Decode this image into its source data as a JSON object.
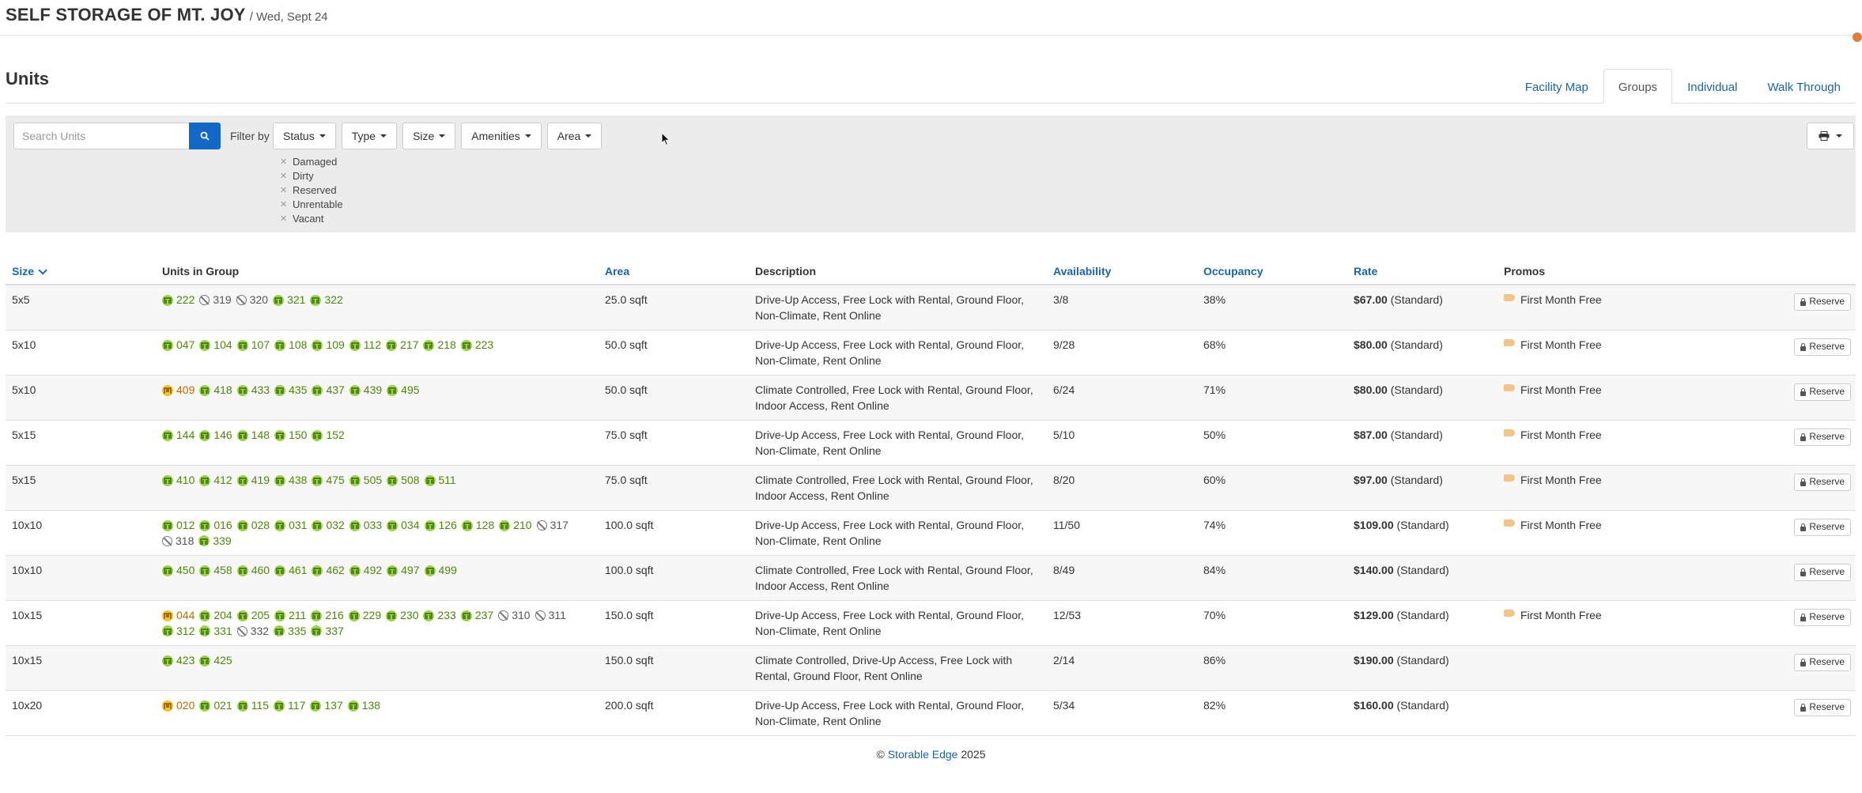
{
  "header": {
    "facility_name": "SELF STORAGE OF MT. JOY",
    "date": "/ Wed, Sept 24"
  },
  "units_section": {
    "title": "Units",
    "tabs": [
      {
        "label": "Facility Map",
        "active": false
      },
      {
        "label": "Groups",
        "active": true
      },
      {
        "label": "Individual",
        "active": false
      },
      {
        "label": "Walk Through",
        "active": false
      }
    ]
  },
  "filters": {
    "search_placeholder": "Search Units",
    "filter_by_label": "Filter by",
    "buttons": [
      "Status",
      "Type",
      "Size",
      "Amenities",
      "Area"
    ],
    "active_chips": [
      "Damaged",
      "Dirty",
      "Reserved",
      "Unrentable",
      "Vacant"
    ]
  },
  "table": {
    "columns": [
      "Size",
      "Units in Group",
      "Area",
      "Description",
      "Availability",
      "Occupancy",
      "Rate",
      "Promos",
      ""
    ],
    "reserve_label": "Reserve",
    "rows": [
      {
        "size": "5x5",
        "units": [
          [
            "222",
            "ok"
          ],
          [
            "319",
            "dis"
          ],
          [
            "320",
            "dis"
          ],
          [
            "321",
            "ok"
          ],
          [
            "322",
            "ok"
          ]
        ],
        "area": "25.0 sqft",
        "desc": "Drive-Up Access, Free Lock with Rental, Ground Floor, Non-Climate, Rent Online",
        "avail": "3/8",
        "occ": "38%",
        "rate": "$67.00",
        "rate_note": "(Standard)",
        "promo": "First Month Free"
      },
      {
        "size": "5x10",
        "units": [
          [
            "047",
            "ok"
          ],
          [
            "104",
            "ok"
          ],
          [
            "107",
            "ok"
          ],
          [
            "108",
            "ok"
          ],
          [
            "109",
            "ok"
          ],
          [
            "112",
            "ok"
          ],
          [
            "217",
            "ok"
          ],
          [
            "218",
            "ok"
          ],
          [
            "223",
            "ok"
          ]
        ],
        "area": "50.0 sqft",
        "desc": "Drive-Up Access, Free Lock with Rental, Ground Floor, Non-Climate, Rent Online",
        "avail": "9/28",
        "occ": "68%",
        "rate": "$80.00",
        "rate_note": "(Standard)",
        "promo": "First Month Free"
      },
      {
        "size": "5x10",
        "units": [
          [
            "409",
            "res"
          ],
          [
            "418",
            "ok"
          ],
          [
            "433",
            "ok"
          ],
          [
            "435",
            "ok"
          ],
          [
            "437",
            "ok"
          ],
          [
            "439",
            "ok"
          ],
          [
            "495",
            "ok"
          ]
        ],
        "area": "50.0 sqft",
        "desc": "Climate Controlled, Free Lock with Rental, Ground Floor, Indoor Access, Rent Online",
        "avail": "6/24",
        "occ": "71%",
        "rate": "$80.00",
        "rate_note": "(Standard)",
        "promo": "First Month Free"
      },
      {
        "size": "5x15",
        "units": [
          [
            "144",
            "ok"
          ],
          [
            "146",
            "ok"
          ],
          [
            "148",
            "ok"
          ],
          [
            "150",
            "ok"
          ],
          [
            "152",
            "ok"
          ]
        ],
        "area": "75.0 sqft",
        "desc": "Drive-Up Access, Free Lock with Rental, Ground Floor, Non-Climate, Rent Online",
        "avail": "5/10",
        "occ": "50%",
        "rate": "$87.00",
        "rate_note": "(Standard)",
        "promo": "First Month Free"
      },
      {
        "size": "5x15",
        "units": [
          [
            "410",
            "ok"
          ],
          [
            "412",
            "ok"
          ],
          [
            "419",
            "ok"
          ],
          [
            "438",
            "ok"
          ],
          [
            "475",
            "ok"
          ],
          [
            "505",
            "ok"
          ],
          [
            "508",
            "ok"
          ],
          [
            "511",
            "ok"
          ]
        ],
        "area": "75.0 sqft",
        "desc": "Climate Controlled, Free Lock with Rental, Ground Floor, Indoor Access, Rent Online",
        "avail": "8/20",
        "occ": "60%",
        "rate": "$97.00",
        "rate_note": "(Standard)",
        "promo": "First Month Free"
      },
      {
        "size": "10x10",
        "units": [
          [
            "012",
            "ok"
          ],
          [
            "016",
            "ok"
          ],
          [
            "028",
            "ok"
          ],
          [
            "031",
            "ok"
          ],
          [
            "032",
            "ok"
          ],
          [
            "033",
            "ok"
          ],
          [
            "034",
            "ok"
          ],
          [
            "126",
            "ok"
          ],
          [
            "128",
            "ok"
          ],
          [
            "210",
            "ok"
          ],
          [
            "317",
            "dis"
          ],
          [
            "318",
            "dis"
          ],
          [
            "339",
            "ok"
          ]
        ],
        "area": "100.0 sqft",
        "desc": "Drive-Up Access, Free Lock with Rental, Ground Floor, Non-Climate, Rent Online",
        "avail": "11/50",
        "occ": "74%",
        "rate": "$109.00",
        "rate_note": "(Standard)",
        "promo": "First Month Free"
      },
      {
        "size": "10x10",
        "units": [
          [
            "450",
            "ok"
          ],
          [
            "458",
            "ok"
          ],
          [
            "460",
            "ok"
          ],
          [
            "461",
            "ok"
          ],
          [
            "462",
            "ok"
          ],
          [
            "492",
            "ok"
          ],
          [
            "497",
            "ok"
          ],
          [
            "499",
            "ok"
          ]
        ],
        "area": "100.0 sqft",
        "desc": "Climate Controlled, Free Lock with Rental, Ground Floor, Indoor Access, Rent Online",
        "avail": "8/49",
        "occ": "84%",
        "rate": "$140.00",
        "rate_note": "(Standard)",
        "promo": ""
      },
      {
        "size": "10x15",
        "units": [
          [
            "044",
            "res"
          ],
          [
            "204",
            "ok"
          ],
          [
            "205",
            "ok"
          ],
          [
            "211",
            "ok"
          ],
          [
            "216",
            "ok"
          ],
          [
            "229",
            "ok"
          ],
          [
            "230",
            "ok"
          ],
          [
            "233",
            "ok"
          ],
          [
            "237",
            "ok"
          ],
          [
            "310",
            "dis"
          ],
          [
            "311",
            "dis"
          ],
          [
            "312",
            "ok"
          ],
          [
            "331",
            "ok"
          ],
          [
            "332",
            "dis"
          ],
          [
            "335",
            "ok"
          ],
          [
            "337",
            "ok"
          ]
        ],
        "area": "150.0 sqft",
        "desc": "Drive-Up Access, Free Lock with Rental, Ground Floor, Non-Climate, Rent Online",
        "avail": "12/53",
        "occ": "70%",
        "rate": "$129.00",
        "rate_note": "(Standard)",
        "promo": "First Month Free"
      },
      {
        "size": "10x15",
        "units": [
          [
            "423",
            "ok"
          ],
          [
            "425",
            "ok"
          ]
        ],
        "area": "150.0 sqft",
        "desc": "Climate Controlled, Drive-Up Access, Free Lock with Rental, Ground Floor, Rent Online",
        "avail": "2/14",
        "occ": "86%",
        "rate": "$190.00",
        "rate_note": "(Standard)",
        "promo": ""
      },
      {
        "size": "10x20",
        "units": [
          [
            "020",
            "res"
          ],
          [
            "021",
            "ok"
          ],
          [
            "115",
            "ok"
          ],
          [
            "117",
            "ok"
          ],
          [
            "137",
            "ok"
          ],
          [
            "138",
            "ok"
          ]
        ],
        "area": "200.0 sqft",
        "desc": "Drive-Up Access, Free Lock with Rental, Ground Floor, Non-Climate, Rent Online",
        "avail": "5/34",
        "occ": "82%",
        "rate": "$160.00",
        "rate_note": "(Standard)",
        "promo": ""
      }
    ]
  },
  "footer": {
    "prefix": "© ",
    "link": "Storable Edge",
    "suffix": " 2025"
  }
}
